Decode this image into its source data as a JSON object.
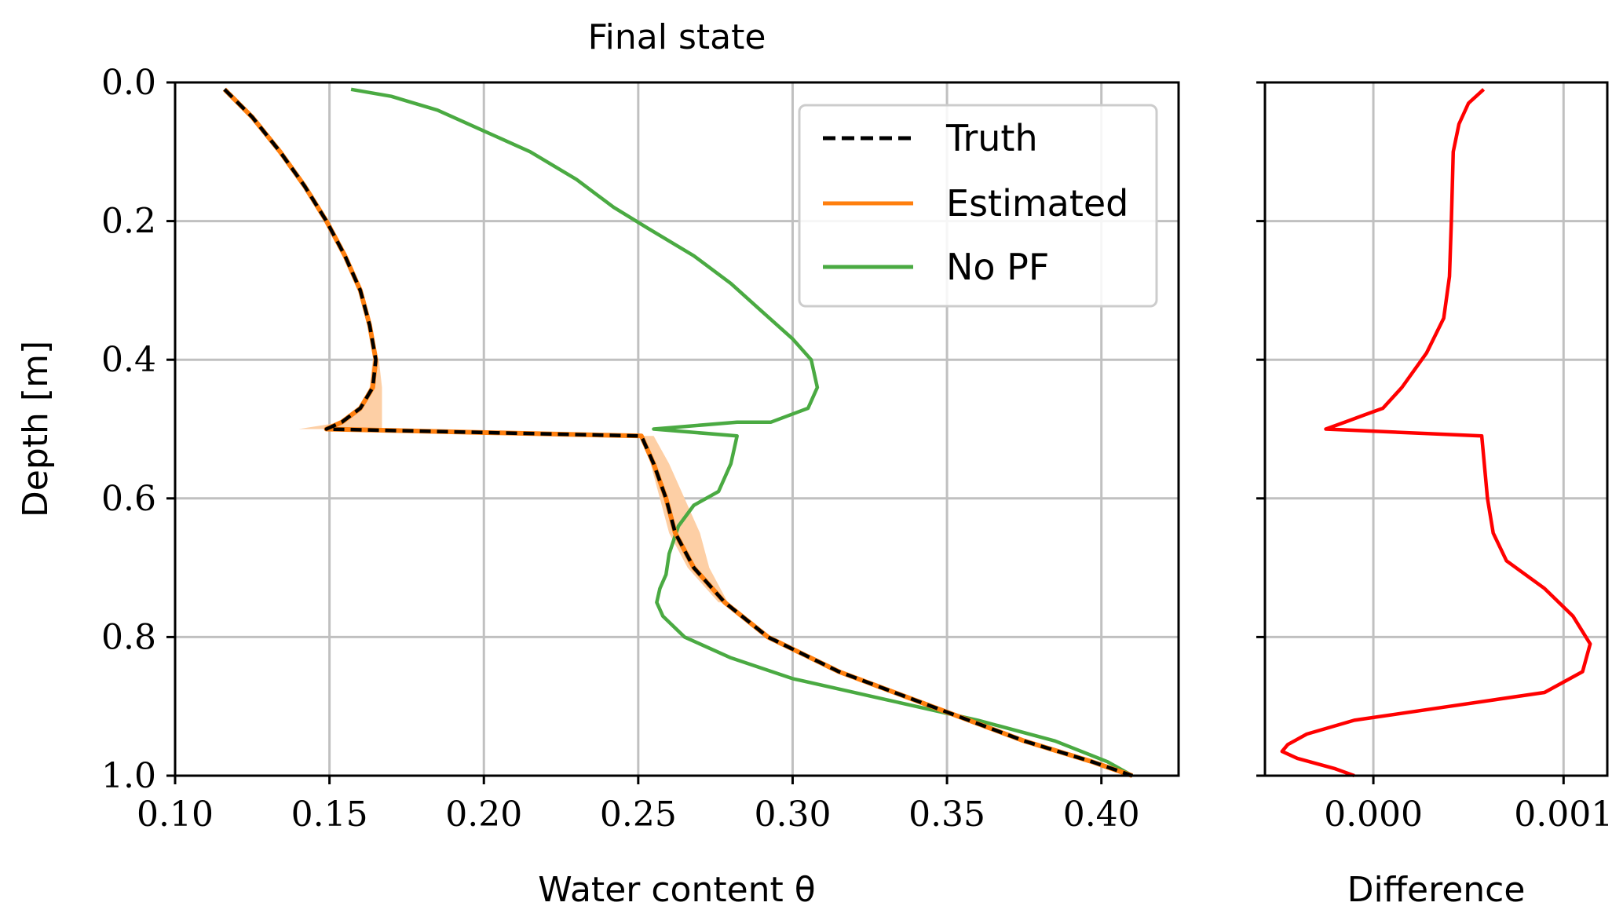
{
  "chart_data": [
    {
      "type": "line",
      "title": "Final state",
      "xlabel": "Water content θ",
      "ylabel": "Depth [m]",
      "xlim": [
        0.1,
        0.425
      ],
      "ylim": [
        1.0,
        0.0
      ],
      "y_inverted": true,
      "grid": true,
      "legend_position": "top-right",
      "x_ticks": [
        0.1,
        0.15,
        0.2,
        0.25,
        0.3,
        0.35,
        0.4
      ],
      "x_tick_labels": [
        "0.10",
        "0.15",
        "0.20",
        "0.25",
        "0.30",
        "0.35",
        "0.40"
      ],
      "y_ticks": [
        0.0,
        0.2,
        0.4,
        0.6,
        0.8,
        1.0
      ],
      "y_tick_labels": [
        "0.0",
        "0.2",
        "0.4",
        "0.6",
        "0.8",
        "1.0"
      ],
      "band": {
        "color": "#fdcfa5",
        "series": "Estimated",
        "points": [
          {
            "depth": 0.4,
            "lo": 0.164,
            "hi": 0.166
          },
          {
            "depth": 0.44,
            "lo": 0.163,
            "hi": 0.167
          },
          {
            "depth": 0.47,
            "lo": 0.16,
            "hi": 0.167
          },
          {
            "depth": 0.49,
            "lo": 0.154,
            "hi": 0.167
          },
          {
            "depth": 0.5,
            "lo": 0.14,
            "hi": 0.167
          },
          {
            "depth": 0.51,
            "lo": 0.251,
            "hi": 0.255
          },
          {
            "depth": 0.55,
            "lo": 0.254,
            "hi": 0.26
          },
          {
            "depth": 0.6,
            "lo": 0.257,
            "hi": 0.265
          },
          {
            "depth": 0.65,
            "lo": 0.26,
            "hi": 0.27
          },
          {
            "depth": 0.7,
            "lo": 0.266,
            "hi": 0.273
          },
          {
            "depth": 0.75,
            "lo": 0.276,
            "hi": 0.279
          }
        ]
      },
      "series": [
        {
          "name": "Truth",
          "color": "#000000",
          "style": "dashed",
          "points": [
            [
              0.116,
              0.01
            ],
            [
              0.125,
              0.05
            ],
            [
              0.134,
              0.1
            ],
            [
              0.142,
              0.15
            ],
            [
              0.149,
              0.2
            ],
            [
              0.155,
              0.25
            ],
            [
              0.16,
              0.3
            ],
            [
              0.163,
              0.35
            ],
            [
              0.165,
              0.4
            ],
            [
              0.164,
              0.44
            ],
            [
              0.16,
              0.47
            ],
            [
              0.154,
              0.49
            ],
            [
              0.149,
              0.5
            ],
            [
              0.251,
              0.51
            ],
            [
              0.255,
              0.55
            ],
            [
              0.259,
              0.6
            ],
            [
              0.262,
              0.65
            ],
            [
              0.268,
              0.7
            ],
            [
              0.278,
              0.75
            ],
            [
              0.292,
              0.8
            ],
            [
              0.315,
              0.85
            ],
            [
              0.345,
              0.9
            ],
            [
              0.375,
              0.95
            ],
            [
              0.397,
              0.98
            ],
            [
              0.41,
              1.0
            ]
          ]
        },
        {
          "name": "Estimated",
          "color": "#ff7f0e",
          "style": "solid",
          "points": [
            [
              0.116,
              0.01
            ],
            [
              0.125,
              0.05
            ],
            [
              0.134,
              0.1
            ],
            [
              0.142,
              0.15
            ],
            [
              0.149,
              0.2
            ],
            [
              0.155,
              0.25
            ],
            [
              0.16,
              0.3
            ],
            [
              0.163,
              0.35
            ],
            [
              0.165,
              0.4
            ],
            [
              0.164,
              0.44
            ],
            [
              0.16,
              0.47
            ],
            [
              0.154,
              0.49
            ],
            [
              0.149,
              0.5
            ],
            [
              0.251,
              0.51
            ],
            [
              0.255,
              0.55
            ],
            [
              0.259,
              0.6
            ],
            [
              0.262,
              0.65
            ],
            [
              0.268,
              0.7
            ],
            [
              0.278,
              0.75
            ],
            [
              0.292,
              0.8
            ],
            [
              0.315,
              0.85
            ],
            [
              0.345,
              0.9
            ],
            [
              0.375,
              0.95
            ],
            [
              0.397,
              0.98
            ],
            [
              0.41,
              1.0
            ]
          ]
        },
        {
          "name": "No PF",
          "color": "#4aaa42",
          "style": "solid",
          "points": [
            [
              0.157,
              0.01
            ],
            [
              0.17,
              0.02
            ],
            [
              0.185,
              0.04
            ],
            [
              0.2,
              0.07
            ],
            [
              0.215,
              0.1
            ],
            [
              0.23,
              0.14
            ],
            [
              0.242,
              0.18
            ],
            [
              0.253,
              0.21
            ],
            [
              0.268,
              0.25
            ],
            [
              0.28,
              0.29
            ],
            [
              0.29,
              0.33
            ],
            [
              0.3,
              0.37
            ],
            [
              0.306,
              0.4
            ],
            [
              0.308,
              0.44
            ],
            [
              0.305,
              0.47
            ],
            [
              0.299,
              0.48
            ],
            [
              0.293,
              0.49
            ],
            [
              0.282,
              0.49
            ],
            [
              0.255,
              0.5
            ],
            [
              0.282,
              0.51
            ],
            [
              0.28,
              0.55
            ],
            [
              0.276,
              0.59
            ],
            [
              0.268,
              0.61
            ],
            [
              0.263,
              0.64
            ],
            [
              0.26,
              0.68
            ],
            [
              0.259,
              0.71
            ],
            [
              0.257,
              0.73
            ],
            [
              0.256,
              0.75
            ],
            [
              0.258,
              0.77
            ],
            [
              0.265,
              0.8
            ],
            [
              0.28,
              0.83
            ],
            [
              0.3,
              0.86
            ],
            [
              0.33,
              0.89
            ],
            [
              0.36,
              0.92
            ],
            [
              0.385,
              0.95
            ],
            [
              0.402,
              0.98
            ],
            [
              0.41,
              1.0
            ]
          ]
        }
      ]
    },
    {
      "type": "line",
      "title": "",
      "xlabel": "Difference",
      "ylabel": "",
      "xlim": [
        -0.00057,
        0.00123
      ],
      "ylim": [
        1.0,
        0.0
      ],
      "y_inverted": true,
      "grid": true,
      "x_ticks": [
        0.0,
        0.001
      ],
      "x_tick_labels": [
        "0.000",
        "0.001"
      ],
      "series": [
        {
          "name": "",
          "color": "#ff0000",
          "style": "solid",
          "points": [
            [
              0.00058,
              0.01
            ],
            [
              0.0005,
              0.03
            ],
            [
              0.00045,
              0.06
            ],
            [
              0.00042,
              0.1
            ],
            [
              0.00041,
              0.2
            ],
            [
              0.0004,
              0.28
            ],
            [
              0.00037,
              0.34
            ],
            [
              0.00028,
              0.39
            ],
            [
              0.00015,
              0.44
            ],
            [
              5e-05,
              0.47
            ],
            [
              -5e-05,
              0.48
            ],
            [
              -0.00015,
              0.49
            ],
            [
              -0.00025,
              0.5
            ],
            [
              0.00057,
              0.51
            ],
            [
              0.0006,
              0.6
            ],
            [
              0.00063,
              0.65
            ],
            [
              0.0007,
              0.69
            ],
            [
              0.0009,
              0.73
            ],
            [
              0.00105,
              0.77
            ],
            [
              0.00114,
              0.81
            ],
            [
              0.0011,
              0.85
            ],
            [
              0.0009,
              0.88
            ],
            [
              0.0004,
              0.9
            ],
            [
              -0.0001,
              0.92
            ],
            [
              -0.00035,
              0.94
            ],
            [
              -0.00045,
              0.955
            ],
            [
              -0.00048,
              0.965
            ],
            [
              -0.0004,
              0.975
            ],
            [
              -0.0002,
              0.99
            ],
            [
              -0.0001,
              1.0
            ]
          ]
        }
      ]
    }
  ]
}
